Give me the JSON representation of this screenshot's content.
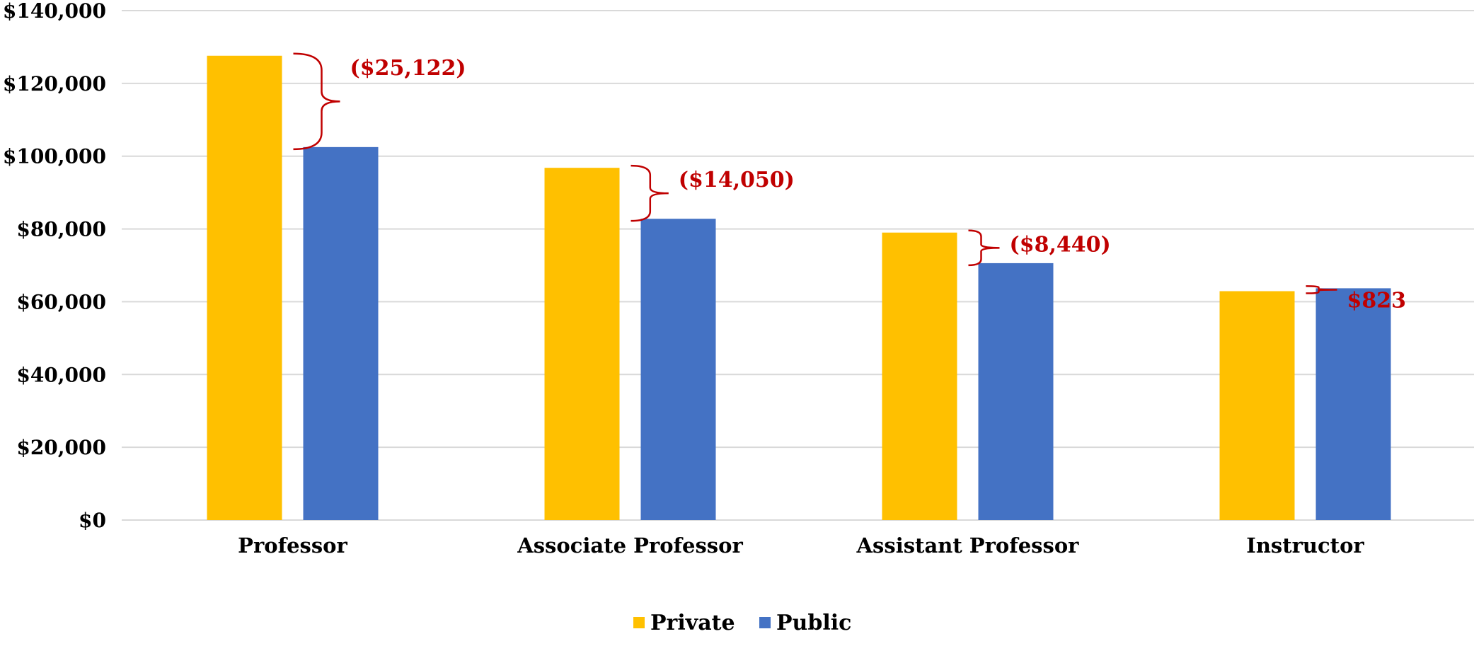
{
  "chart_data": {
    "type": "bar",
    "title": "",
    "xlabel": "",
    "ylabel": "",
    "categories": [
      "Professor",
      "Associate Professor",
      "Assistant Professor",
      "Instructor"
    ],
    "series": [
      {
        "name": "Private",
        "color": "#FFC000",
        "values": [
          127600,
          96800,
          79000,
          62900
        ]
      },
      {
        "name": "Public",
        "color": "#4472C4",
        "values": [
          102500,
          82800,
          70600,
          63700
        ]
      }
    ],
    "ylim": [
      0,
      140000
    ],
    "yticks": [
      0,
      20000,
      40000,
      60000,
      80000,
      100000,
      120000,
      140000
    ],
    "ytick_labels": [
      "$0",
      "$20,000",
      "$40,000",
      "$60,000",
      "$80,000",
      "$100,000",
      "$120,000",
      "$140,000"
    ],
    "grid": true,
    "legend_position": "bottom-center",
    "annotations": [
      {
        "category": "Professor",
        "text": "($25,122)"
      },
      {
        "category": "Associate Professor",
        "text": "($14,050)"
      },
      {
        "category": "Assistant Professor",
        "text": "($8,440)"
      },
      {
        "category": "Instructor",
        "text": "$823"
      }
    ],
    "annotation_color": "#C00000",
    "gridline_color": "#D9D9D9"
  }
}
